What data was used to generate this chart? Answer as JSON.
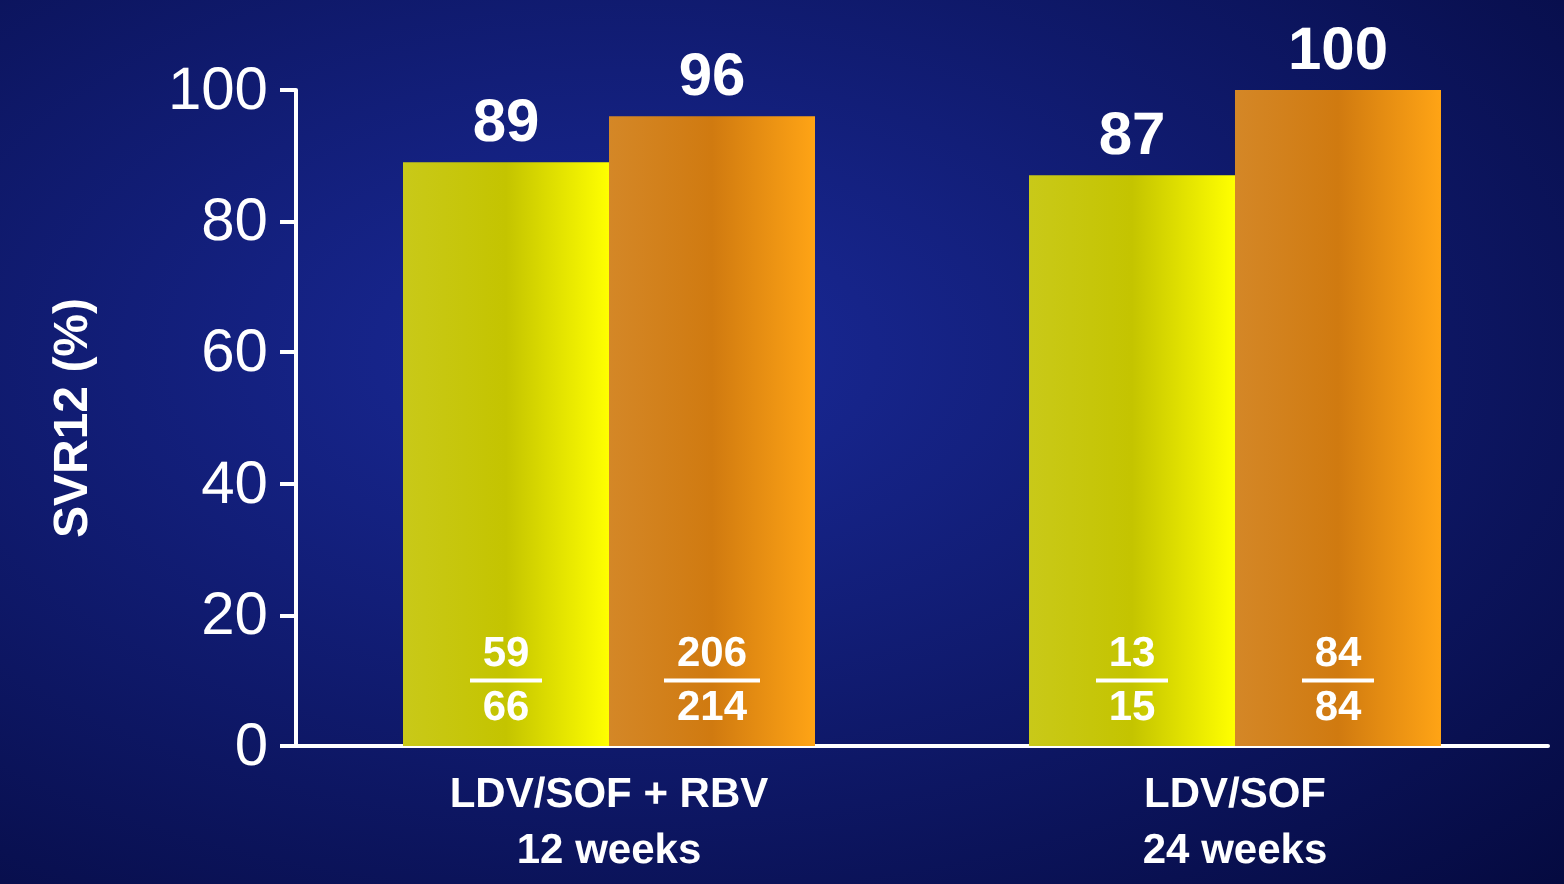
{
  "chart_data": {
    "type": "bar",
    "ylabel": "SVR12 (%)",
    "categories": [
      "LDV/SOF + RBV\n12 weeks",
      "LDV/SOF\n24 weeks"
    ],
    "series": [
      {
        "color": "#c4c400",
        "values": [
          89,
          87
        ]
      },
      {
        "color": "#d07a10",
        "values": [
          96,
          100
        ]
      }
    ],
    "ylim": [
      0,
      100
    ],
    "yticks": [
      0,
      20,
      40,
      60,
      80,
      100
    ],
    "grid": false,
    "data_labels": true,
    "annotations": [
      {
        "text": "59\n66",
        "x": "LDV/SOF + RBV\n12 weeks",
        "y": 10
      },
      {
        "text": "206\n214",
        "x": "LDV/SOF + RBV\n12 weeks",
        "y": 10
      },
      {
        "text": "13\n15",
        "x": "LDV/SOF\n24 weeks",
        "y": 10
      },
      {
        "text": "84\n84",
        "x": "LDV/SOF\n24 weeks",
        "y": 10
      }
    ]
  }
}
